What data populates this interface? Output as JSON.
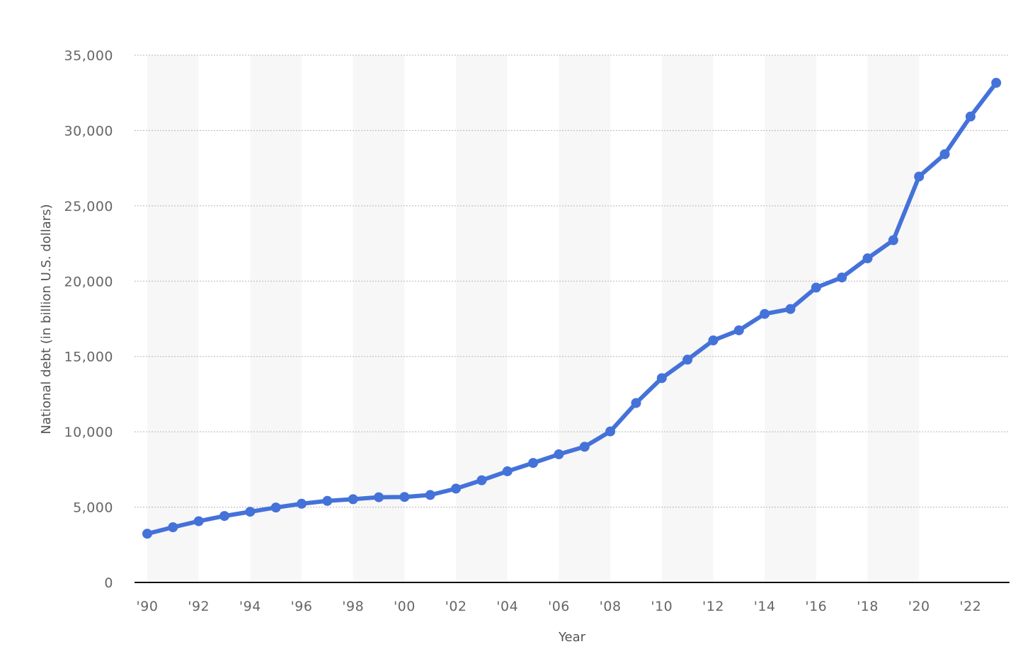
{
  "chart_data": {
    "type": "line",
    "xlabel": "Year",
    "ylabel": "National debt (in billion U.S. dollars)",
    "ylim": [
      0,
      35000
    ],
    "yticks": [
      0,
      5000,
      10000,
      15000,
      20000,
      25000,
      30000,
      35000
    ],
    "ytick_labels": [
      "0",
      "5,000",
      "10,000",
      "15,000",
      "20,000",
      "25,000",
      "30,000",
      "35,000"
    ],
    "xtick_labels": [
      "'90",
      "'92",
      "'94",
      "'96",
      "'98",
      "'00",
      "'02",
      "'04",
      "'06",
      "'08",
      "'10",
      "'12",
      "'14",
      "'16",
      "'18",
      "'20",
      "'22"
    ],
    "grid": "horizontal dotted",
    "alternating_bands": true,
    "line_color": "#4472d9",
    "series": [
      {
        "x": [
          1990,
          1991,
          1992,
          1993,
          1994,
          1995,
          1996,
          1997,
          1998,
          1999,
          2000,
          2001,
          2002,
          2003,
          2004,
          2005,
          2006,
          2007,
          2008,
          2009,
          2010,
          2011,
          2012,
          2013,
          2014,
          2015,
          2016,
          2017,
          2018,
          2019,
          2020,
          2021,
          2022,
          2023
        ],
        "values": [
          3233,
          3665,
          4065,
          4411,
          4693,
          4974,
          5225,
          5413,
          5526,
          5656,
          5674,
          5807,
          6228,
          6783,
          7379,
          7933,
          8507,
          9008,
          10025,
          11910,
          13562,
          14790,
          16066,
          16738,
          17824,
          18151,
          19573,
          20245,
          21516,
          22719,
          26945,
          28429,
          30929,
          33167
        ]
      }
    ]
  }
}
